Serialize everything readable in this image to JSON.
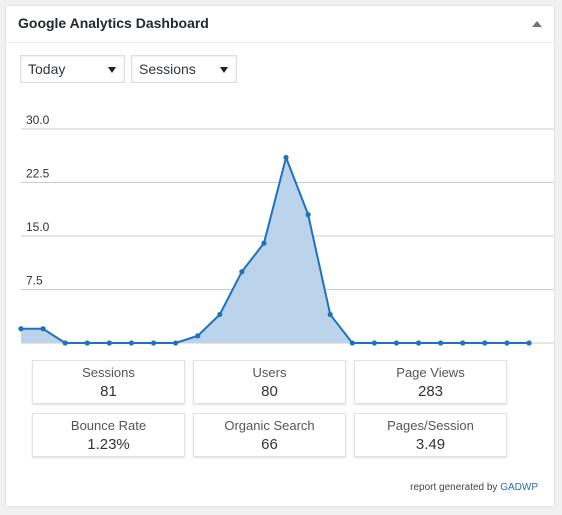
{
  "widget": {
    "title": "Google Analytics Dashboard"
  },
  "controls": {
    "range_selected": "Today",
    "metric_selected": "Sessions"
  },
  "chart_data": {
    "type": "area",
    "title": "",
    "xlabel": "",
    "ylabel": "",
    "ylim": [
      0,
      30
    ],
    "y_ticks": [
      "30.0",
      "22.5",
      "15.0",
      "7.5"
    ],
    "grid": true,
    "legend": "none",
    "color": "#1e73be",
    "fill_color": "#bcd3ec",
    "series": [
      {
        "values": [
          2,
          2,
          0,
          0,
          0,
          0,
          0,
          0,
          1,
          4,
          10,
          14,
          26,
          18,
          4,
          0,
          0,
          0,
          0,
          0,
          0,
          0,
          0,
          0
        ]
      }
    ]
  },
  "stats": [
    {
      "label": "Sessions",
      "value": "81"
    },
    {
      "label": "Users",
      "value": "80"
    },
    {
      "label": "Page Views",
      "value": "283"
    },
    {
      "label": "Bounce Rate",
      "value": "1.23%"
    },
    {
      "label": "Organic Search",
      "value": "66"
    },
    {
      "label": "Pages/Session",
      "value": "3.49"
    }
  ],
  "footer": {
    "text": "report generated by",
    "link": "GADWP"
  }
}
